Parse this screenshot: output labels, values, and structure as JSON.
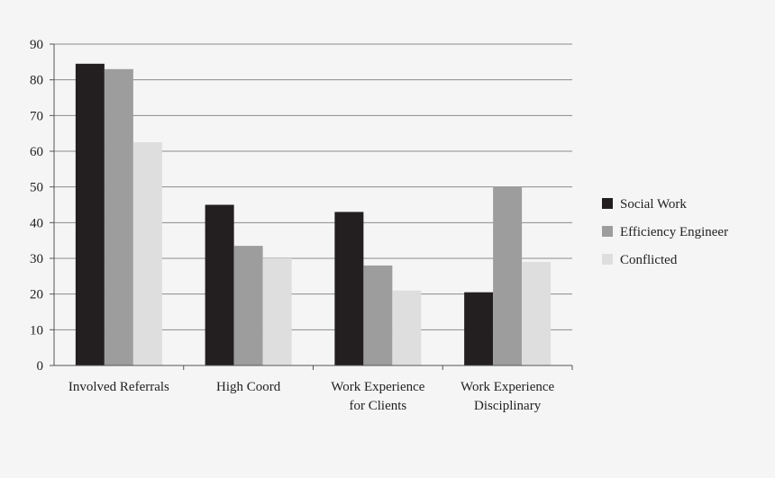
{
  "chart_data": {
    "type": "bar",
    "categories": [
      [
        "Involved Referrals"
      ],
      [
        "High Coord"
      ],
      [
        "Work Experience",
        "for Clients"
      ],
      [
        "Work Experience",
        "Disciplinary"
      ]
    ],
    "series": [
      {
        "name": "Social Work",
        "color": "#231f20",
        "values": [
          84.5,
          45,
          43,
          20.5
        ]
      },
      {
        "name": "Efficiency Engineer",
        "color": "#9d9d9d",
        "values": [
          83,
          33.5,
          28,
          50
        ]
      },
      {
        "name": "Conflicted",
        "color": "#dedede",
        "values": [
          62.5,
          30,
          21,
          29
        ]
      }
    ],
    "ylim": [
      0,
      90
    ],
    "yticks": [
      0,
      10,
      20,
      30,
      40,
      50,
      60,
      70,
      80,
      90
    ],
    "grid": true,
    "legend": "right",
    "title": "",
    "xlabel": "",
    "ylabel": ""
  }
}
